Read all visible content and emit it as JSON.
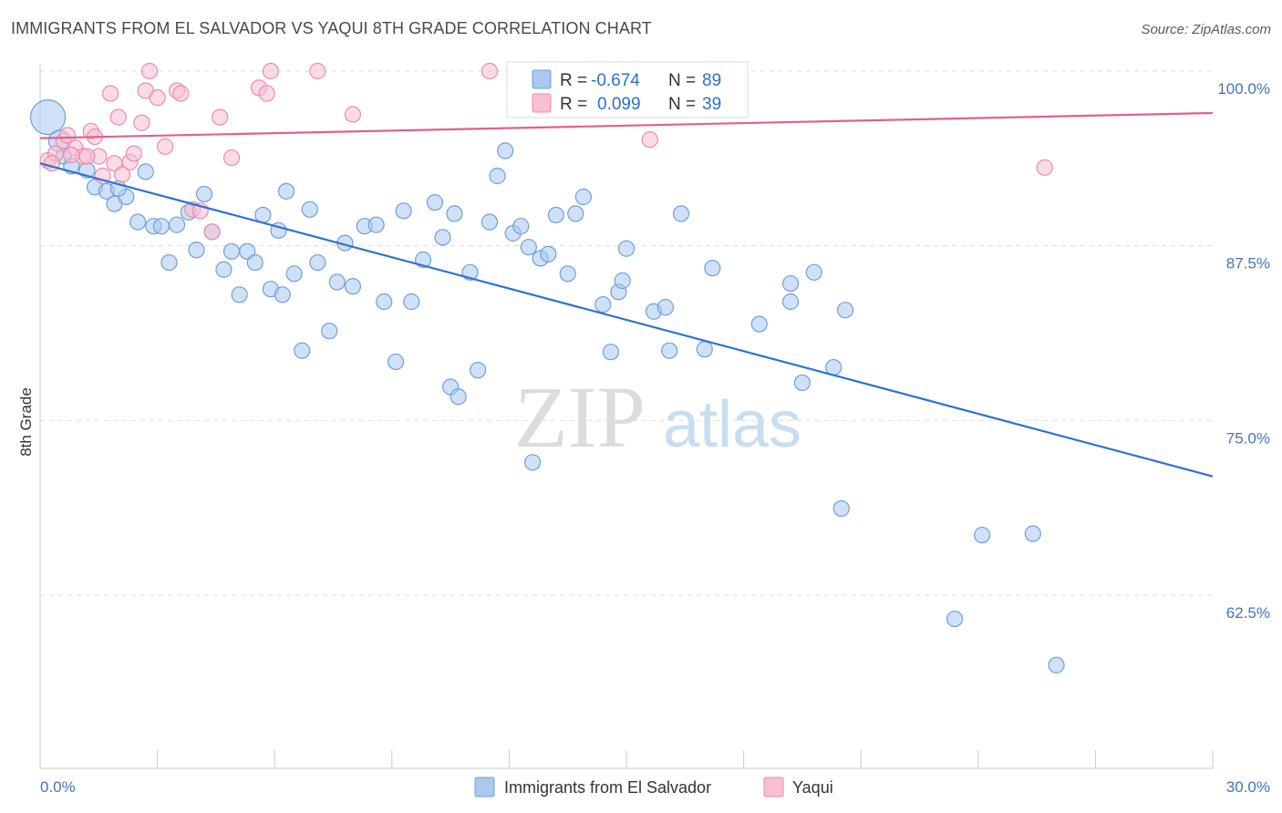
{
  "title": "IMMIGRANTS FROM EL SALVADOR VS YAQUI 8TH GRADE CORRELATION CHART",
  "source": "Source: ZipAtlas.com",
  "watermark": {
    "zip": "ZIP",
    "atlas": "atlas"
  },
  "colors": {
    "blue_fill": "#aac8f0",
    "blue_stroke": "#6f9fdc",
    "blue_line": "#2f72d1",
    "pink_fill": "#f7bfd1",
    "pink_stroke": "#ea8cab",
    "pink_line": "#e35f8c",
    "grid": "#d9dde3",
    "tick_label": "#4472c4"
  },
  "legend": {
    "rows": [
      {
        "r_label": "R =",
        "r_value": "-0.674",
        "n_label": "N =",
        "n_value": "89",
        "series": "blue"
      },
      {
        "r_label": "R =",
        "r_value": "0.099",
        "n_label": "N =",
        "n_value": "39",
        "series": "pink"
      }
    ]
  },
  "bottom_legend": [
    "Immigrants from El Salvador",
    "Yaqui"
  ],
  "chart_data": {
    "type": "scatter",
    "ylabel": "8th Grade",
    "xlabel": "",
    "xlim": [
      0,
      30
    ],
    "ylim": [
      50,
      102.5
    ],
    "x_tick_labels": [
      "0.0%",
      "30.0%"
    ],
    "y_ticks": [
      62.5,
      75.0,
      87.5,
      100.0
    ],
    "y_tick_labels": [
      "62.5%",
      "75.0%",
      "87.5%",
      "100.0%"
    ],
    "grid": true,
    "series": [
      {
        "name": "Immigrants from El Salvador",
        "color": "blue",
        "trend": {
          "x": [
            0,
            30
          ],
          "y": [
            93.4,
            71.0
          ]
        },
        "points": [
          [
            0.2,
            96.7,
            3
          ],
          [
            0.5,
            95.0,
            2
          ],
          [
            0.6,
            93.9,
            1
          ],
          [
            0.8,
            93.2,
            1
          ],
          [
            1.2,
            92.9,
            1
          ],
          [
            1.4,
            91.7,
            1
          ],
          [
            1.7,
            91.4,
            1
          ],
          [
            1.9,
            90.5,
            1
          ],
          [
            2.2,
            91.0,
            1
          ],
          [
            2.5,
            89.2,
            1
          ],
          [
            2.7,
            92.8,
            1
          ],
          [
            2.9,
            88.9,
            1
          ],
          [
            3.1,
            88.9,
            1
          ],
          [
            3.3,
            86.3,
            1
          ],
          [
            3.5,
            89.0,
            1
          ],
          [
            3.8,
            89.9,
            1
          ],
          [
            4.0,
            87.2,
            1
          ],
          [
            4.2,
            91.2,
            1
          ],
          [
            4.4,
            88.5,
            1
          ],
          [
            4.7,
            85.8,
            1
          ],
          [
            4.9,
            87.1,
            1
          ],
          [
            5.1,
            84.0,
            1
          ],
          [
            5.3,
            87.1,
            1
          ],
          [
            5.5,
            86.3,
            1
          ],
          [
            5.7,
            89.7,
            1
          ],
          [
            5.9,
            84.4,
            1
          ],
          [
            6.1,
            88.6,
            1
          ],
          [
            6.3,
            91.4,
            1
          ],
          [
            6.5,
            85.5,
            1
          ],
          [
            6.7,
            80.0,
            1
          ],
          [
            6.9,
            90.1,
            1
          ],
          [
            7.1,
            86.3,
            1
          ],
          [
            7.4,
            81.4,
            1
          ],
          [
            7.6,
            84.9,
            1
          ],
          [
            7.8,
            87.7,
            1
          ],
          [
            8.0,
            84.6,
            1
          ],
          [
            8.3,
            88.9,
            1
          ],
          [
            8.6,
            89.0,
            1
          ],
          [
            8.8,
            83.5,
            1
          ],
          [
            9.1,
            79.2,
            1
          ],
          [
            9.3,
            90.0,
            1
          ],
          [
            9.5,
            83.5,
            1
          ],
          [
            9.8,
            86.5,
            1
          ],
          [
            10.1,
            90.6,
            1
          ],
          [
            10.3,
            88.1,
            1
          ],
          [
            10.6,
            89.8,
            1
          ],
          [
            10.5,
            77.4,
            1
          ],
          [
            10.7,
            76.7,
            1
          ],
          [
            11.0,
            85.6,
            1
          ],
          [
            11.2,
            78.6,
            1
          ],
          [
            11.5,
            89.2,
            1
          ],
          [
            11.7,
            92.5,
            1
          ],
          [
            11.9,
            94.3,
            1
          ],
          [
            12.1,
            88.4,
            1
          ],
          [
            12.3,
            88.9,
            1
          ],
          [
            12.5,
            87.4,
            1
          ],
          [
            12.6,
            72.0,
            1
          ],
          [
            12.8,
            86.6,
            1
          ],
          [
            13.0,
            86.9,
            1
          ],
          [
            13.2,
            89.7,
            1
          ],
          [
            13.5,
            85.5,
            1
          ],
          [
            13.7,
            89.8,
            1
          ],
          [
            13.9,
            91.0,
            1
          ],
          [
            14.4,
            83.3,
            1
          ],
          [
            14.6,
            79.9,
            1
          ],
          [
            14.8,
            84.2,
            1
          ],
          [
            14.9,
            85.0,
            1
          ],
          [
            15.0,
            87.3,
            1
          ],
          [
            15.4,
            98.0,
            1
          ],
          [
            15.7,
            82.8,
            1
          ],
          [
            16.0,
            83.1,
            1
          ],
          [
            16.1,
            80.0,
            1
          ],
          [
            16.4,
            89.8,
            1
          ],
          [
            17.0,
            80.1,
            1
          ],
          [
            17.2,
            85.9,
            1
          ],
          [
            18.4,
            81.9,
            1
          ],
          [
            19.2,
            84.8,
            1
          ],
          [
            19.2,
            83.5,
            1
          ],
          [
            19.5,
            77.7,
            1
          ],
          [
            19.8,
            85.6,
            1
          ],
          [
            20.3,
            78.8,
            1
          ],
          [
            20.6,
            82.9,
            1
          ],
          [
            20.5,
            68.7,
            1
          ],
          [
            23.4,
            60.8,
            1
          ],
          [
            24.1,
            66.8,
            1
          ],
          [
            25.4,
            66.9,
            1
          ],
          [
            26.0,
            57.5,
            1
          ],
          [
            2.0,
            91.6,
            1
          ],
          [
            6.2,
            84.0,
            1
          ]
        ]
      },
      {
        "name": "Yaqui",
        "color": "pink",
        "trend": {
          "x": [
            0,
            30
          ],
          "y": [
            95.2,
            97.0
          ]
        },
        "points": [
          [
            0.2,
            93.6,
            1
          ],
          [
            0.4,
            94.1,
            1
          ],
          [
            0.6,
            95.0,
            1
          ],
          [
            0.7,
            95.4,
            1
          ],
          [
            0.9,
            94.5,
            1
          ],
          [
            1.1,
            93.9,
            1
          ],
          [
            1.3,
            95.7,
            1
          ],
          [
            1.5,
            93.9,
            1
          ],
          [
            1.6,
            92.5,
            1
          ],
          [
            1.8,
            98.4,
            1
          ],
          [
            1.9,
            93.4,
            1
          ],
          [
            2.0,
            96.7,
            1
          ],
          [
            2.1,
            92.6,
            1
          ],
          [
            2.3,
            93.5,
            1
          ],
          [
            2.4,
            94.1,
            1
          ],
          [
            2.6,
            96.3,
            1
          ],
          [
            2.7,
            98.6,
            1
          ],
          [
            2.8,
            100.0,
            1
          ],
          [
            3.0,
            98.1,
            1
          ],
          [
            3.2,
            94.6,
            1
          ],
          [
            3.5,
            98.6,
            1
          ],
          [
            3.6,
            98.4,
            1
          ],
          [
            3.9,
            90.1,
            1
          ],
          [
            4.1,
            90.0,
            1
          ],
          [
            4.4,
            88.5,
            1
          ],
          [
            4.6,
            96.7,
            1
          ],
          [
            4.9,
            93.8,
            1
          ],
          [
            5.6,
            98.8,
            1
          ],
          [
            5.8,
            98.4,
            1
          ],
          [
            5.9,
            100.0,
            1
          ],
          [
            7.1,
            100.0,
            1
          ],
          [
            8.0,
            96.9,
            1
          ],
          [
            11.5,
            100.0,
            1
          ],
          [
            15.6,
            95.1,
            1
          ],
          [
            25.7,
            93.1,
            1
          ],
          [
            1.4,
            95.3,
            1
          ],
          [
            0.3,
            93.4,
            1
          ],
          [
            0.8,
            94.0,
            1
          ],
          [
            1.2,
            93.9,
            1
          ]
        ]
      }
    ]
  }
}
